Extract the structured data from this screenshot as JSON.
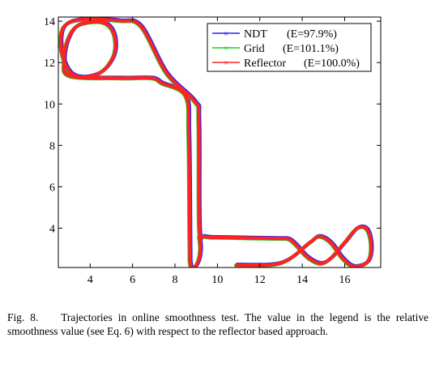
{
  "chart_data": {
    "type": "line",
    "title": "",
    "xlabel": "",
    "ylabel": "",
    "xlim": [
      2.5,
      17.7
    ],
    "ylim": [
      2.1,
      14.2
    ],
    "xticks": [
      4,
      6,
      8,
      10,
      12,
      14,
      16
    ],
    "yticks": [
      4,
      6,
      8,
      10,
      12,
      14
    ],
    "grid": false,
    "legend_position": "top-right",
    "series": [
      {
        "name": "NDT",
        "value_label": "(E=97.9%)",
        "color": "#2222ff",
        "points": [
          [
            10.9,
            2.22
          ],
          [
            13.0,
            2.32
          ],
          [
            14.35,
            3.3
          ],
          [
            14.8,
            3.6
          ],
          [
            15.35,
            3.3
          ],
          [
            15.9,
            2.55
          ],
          [
            16.45,
            2.15
          ],
          [
            17.1,
            2.4
          ],
          [
            17.25,
            3.2
          ],
          [
            17.05,
            3.95
          ],
          [
            16.6,
            4.0
          ],
          [
            16.0,
            3.3
          ],
          [
            15.35,
            2.55
          ],
          [
            14.85,
            2.3
          ],
          [
            14.25,
            2.6
          ],
          [
            13.7,
            3.2
          ],
          [
            13.35,
            3.48
          ],
          [
            12.8,
            3.5
          ],
          [
            10.4,
            3.55
          ],
          [
            9.4,
            3.6
          ],
          [
            9.15,
            4.0
          ],
          [
            9.12,
            9.2
          ],
          [
            8.95,
            10.1
          ],
          [
            7.6,
            11.5
          ],
          [
            6.4,
            13.75
          ],
          [
            5.4,
            14.02
          ],
          [
            3.6,
            14.08
          ],
          [
            2.75,
            13.7
          ],
          [
            2.65,
            12.6
          ],
          [
            3.05,
            11.55
          ],
          [
            3.75,
            11.3
          ],
          [
            4.6,
            11.6
          ],
          [
            5.15,
            12.45
          ],
          [
            5.1,
            13.45
          ],
          [
            4.55,
            13.95
          ],
          [
            3.45,
            13.8
          ],
          [
            2.95,
            13.1
          ],
          [
            2.78,
            12.1
          ],
          [
            3.05,
            11.35
          ],
          [
            5.4,
            11.25
          ],
          [
            6.9,
            11.25
          ],
          [
            7.4,
            11.0
          ],
          [
            8.5,
            10.4
          ],
          [
            8.65,
            8.5
          ],
          [
            8.7,
            3.3
          ],
          [
            8.72,
            2.3
          ],
          [
            8.85,
            2.05
          ],
          [
            9.1,
            2.4
          ],
          [
            9.2,
            3.0
          ],
          [
            9.15,
            3.6
          ]
        ]
      },
      {
        "name": "Grid",
        "value_label": "(E=101.1%)",
        "color": "#22cc22",
        "points": [
          [
            10.9,
            2.22
          ],
          [
            13.0,
            2.32
          ],
          [
            14.35,
            3.3
          ],
          [
            14.8,
            3.6
          ],
          [
            15.35,
            3.3
          ],
          [
            15.9,
            2.55
          ],
          [
            16.45,
            2.15
          ],
          [
            17.1,
            2.4
          ],
          [
            17.25,
            3.2
          ],
          [
            17.05,
            3.95
          ],
          [
            16.6,
            4.0
          ],
          [
            16.0,
            3.3
          ],
          [
            15.35,
            2.55
          ],
          [
            14.85,
            2.3
          ],
          [
            14.25,
            2.6
          ],
          [
            13.7,
            3.2
          ],
          [
            13.35,
            3.48
          ],
          [
            12.8,
            3.5
          ],
          [
            10.4,
            3.55
          ],
          [
            9.4,
            3.6
          ],
          [
            9.15,
            4.0
          ],
          [
            9.12,
            9.2
          ],
          [
            8.95,
            10.1
          ],
          [
            7.6,
            11.5
          ],
          [
            6.4,
            13.75
          ],
          [
            5.4,
            14.02
          ],
          [
            3.6,
            14.08
          ],
          [
            2.75,
            13.7
          ],
          [
            2.65,
            12.6
          ],
          [
            3.05,
            11.55
          ],
          [
            3.75,
            11.3
          ],
          [
            4.6,
            11.6
          ],
          [
            5.15,
            12.45
          ],
          [
            5.1,
            13.45
          ],
          [
            4.55,
            13.95
          ],
          [
            3.45,
            13.8
          ],
          [
            2.95,
            13.1
          ],
          [
            2.78,
            12.1
          ],
          [
            3.05,
            11.35
          ],
          [
            5.4,
            11.25
          ],
          [
            6.9,
            11.25
          ],
          [
            7.4,
            11.0
          ],
          [
            8.5,
            10.4
          ],
          [
            8.65,
            8.5
          ],
          [
            8.7,
            3.3
          ],
          [
            8.72,
            2.3
          ],
          [
            8.85,
            2.05
          ],
          [
            9.1,
            2.4
          ],
          [
            9.2,
            3.0
          ],
          [
            9.15,
            3.6
          ]
        ]
      },
      {
        "name": "Reflector",
        "value_label": "(E=100.0%)",
        "color": "#ff2222",
        "points": [
          [
            10.9,
            2.22
          ],
          [
            13.0,
            2.32
          ],
          [
            14.35,
            3.3
          ],
          [
            14.8,
            3.6
          ],
          [
            15.35,
            3.3
          ],
          [
            15.9,
            2.55
          ],
          [
            16.45,
            2.15
          ],
          [
            17.1,
            2.4
          ],
          [
            17.25,
            3.2
          ],
          [
            17.05,
            3.95
          ],
          [
            16.6,
            4.0
          ],
          [
            16.0,
            3.3
          ],
          [
            15.35,
            2.55
          ],
          [
            14.85,
            2.3
          ],
          [
            14.25,
            2.6
          ],
          [
            13.7,
            3.2
          ],
          [
            13.35,
            3.48
          ],
          [
            12.8,
            3.5
          ],
          [
            10.4,
            3.55
          ],
          [
            9.4,
            3.6
          ],
          [
            9.15,
            4.0
          ],
          [
            9.12,
            9.2
          ],
          [
            8.95,
            10.1
          ],
          [
            7.6,
            11.5
          ],
          [
            6.4,
            13.75
          ],
          [
            5.4,
            14.02
          ],
          [
            3.6,
            14.08
          ],
          [
            2.75,
            13.7
          ],
          [
            2.65,
            12.6
          ],
          [
            3.05,
            11.55
          ],
          [
            3.75,
            11.3
          ],
          [
            4.6,
            11.6
          ],
          [
            5.15,
            12.45
          ],
          [
            5.1,
            13.45
          ],
          [
            4.55,
            13.95
          ],
          [
            3.45,
            13.8
          ],
          [
            2.95,
            13.1
          ],
          [
            2.78,
            12.1
          ],
          [
            3.05,
            11.35
          ],
          [
            5.4,
            11.25
          ],
          [
            6.9,
            11.25
          ],
          [
            7.4,
            11.0
          ],
          [
            8.5,
            10.4
          ],
          [
            8.65,
            8.5
          ],
          [
            8.7,
            3.3
          ],
          [
            8.72,
            2.3
          ],
          [
            8.85,
            2.05
          ],
          [
            9.1,
            2.4
          ],
          [
            9.2,
            3.0
          ],
          [
            9.15,
            3.6
          ]
        ]
      }
    ]
  },
  "caption": {
    "label": "Fig. 8.",
    "text": "Trajectories in online smoothness test. The value in the legend is the relative smoothness value (see Eq. 6) with respect to the reflector based approach."
  }
}
